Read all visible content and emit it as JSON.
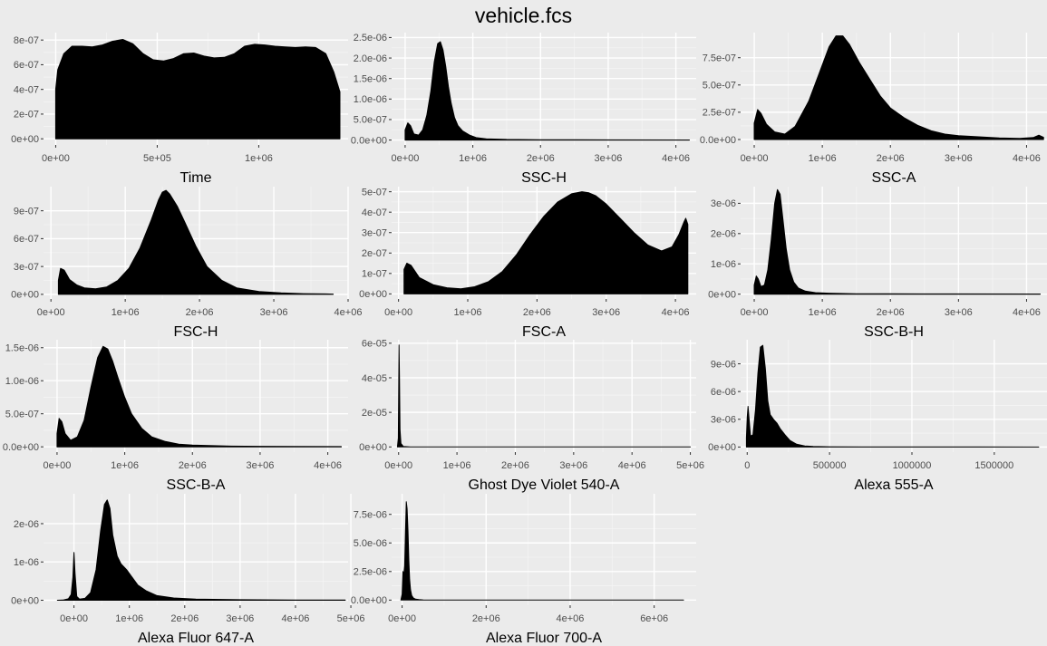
{
  "title": "vehicle.fcs",
  "chart_data": [
    {
      "type": "area",
      "xlabel": "Time",
      "xlim": [
        -60000,
        1440000
      ],
      "ylim": [
        -5e-08,
        8.6e-07
      ],
      "xticks": [
        0,
        500000,
        1000000
      ],
      "xtick_labels": [
        "0e+00",
        "5e+05",
        "1e+06"
      ],
      "yticks": [
        0,
        2e-07,
        4e-07,
        6e-07,
        8e-07
      ],
      "ytick_labels": [
        "0e+00",
        "2e-07",
        "4e-07",
        "6e-07",
        "8e-07"
      ],
      "x": [
        0,
        10000,
        40000,
        80000,
        130000,
        180000,
        230000,
        280000,
        330000,
        380000,
        430000,
        480000,
        530000,
        580000,
        630000,
        680000,
        730000,
        780000,
        830000,
        880000,
        930000,
        980000,
        1030000,
        1080000,
        1130000,
        1180000,
        1230000,
        1280000,
        1330000,
        1370000,
        1400000,
        1400000
      ],
      "y": [
        4e-07,
        5.6e-07,
        6.9e-07,
        7.5e-07,
        7.5e-07,
        7.45e-07,
        7.6e-07,
        7.9e-07,
        8.05e-07,
        7.7e-07,
        6.9e-07,
        6.4e-07,
        6.3e-07,
        6.5e-07,
        6.9e-07,
        6.95e-07,
        6.7e-07,
        6.55e-07,
        6.6e-07,
        6.9e-07,
        7.5e-07,
        7.65e-07,
        7.6e-07,
        7.5e-07,
        7.45e-07,
        7.4e-07,
        7.45e-07,
        7.4e-07,
        6.9e-07,
        5.4e-07,
        3.8e-07,
        0
      ]
    },
    {
      "type": "area",
      "xlabel": "SSC-H",
      "xlim": [
        -200000,
        4300000
      ],
      "ylim": [
        -1.2e-07,
        2.62e-06
      ],
      "xticks": [
        0,
        1000000,
        2000000,
        3000000,
        4000000
      ],
      "xtick_labels": [
        "0e+00",
        "1e+06",
        "2e+06",
        "3e+06",
        "4e+06"
      ],
      "yticks": [
        0,
        5e-07,
        1e-06,
        1.5e-06,
        2e-06,
        2.5e-06
      ],
      "ytick_labels": [
        "0.0e+00",
        "5.0e-07",
        "1.0e-06",
        "1.5e-06",
        "2.0e-06",
        "2.5e-06"
      ],
      "x": [
        0,
        40000,
        80000,
        130000,
        200000,
        260000,
        320000,
        380000,
        430000,
        480000,
        520000,
        560000,
        600000,
        640000,
        680000,
        730000,
        780000,
        850000,
        950000,
        1050000,
        1200000,
        1500000,
        2000000,
        3000000,
        4200000
      ],
      "y": [
        2.5e-07,
        4.2e-07,
        3.5e-07,
        1.5e-07,
        1.2e-07,
        2.5e-07,
        6e-07,
        1.2e-06,
        1.9e-06,
        2.35e-06,
        2.4e-06,
        2.2e-06,
        1.8e-06,
        1.3e-06,
        9e-07,
        5.5e-07,
        3.5e-07,
        2.2e-07,
        1.2e-07,
        6e-08,
        3e-08,
        1.5e-08,
        8e-09,
        4e-09,
        2e-09
      ]
    },
    {
      "type": "area",
      "xlabel": "SSC-A",
      "xlim": [
        -200000,
        4300000
      ],
      "ylim": [
        -5e-08,
        9.8e-07
      ],
      "xticks": [
        0,
        1000000,
        2000000,
        3000000,
        4000000
      ],
      "xtick_labels": [
        "0e+00",
        "1e+06",
        "2e+06",
        "3e+06",
        "4e+06"
      ],
      "yticks": [
        0,
        2.5e-07,
        5e-07,
        7.5e-07
      ],
      "ytick_labels": [
        "0.0e+00",
        "2.5e-07",
        "5.0e-07",
        "7.5e-07"
      ],
      "x": [
        0,
        50000,
        100000,
        180000,
        300000,
        450000,
        600000,
        800000,
        950000,
        1100000,
        1200000,
        1300000,
        1400000,
        1550000,
        1700000,
        1850000,
        2000000,
        2200000,
        2400000,
        2600000,
        2800000,
        3000000,
        3300000,
        3600000,
        3900000,
        4100000,
        4180000,
        4250000
      ],
      "y": [
        1.5e-07,
        2.75e-07,
        2.4e-07,
        1.4e-07,
        7e-08,
        5e-08,
        1.2e-07,
        3.5e-07,
        6e-07,
        8.5e-07,
        9.5e-07,
        9.5e-07,
        8.7e-07,
        7e-07,
        5.5e-07,
        4e-07,
        2.9e-07,
        2e-07,
        1.3e-07,
        8e-08,
        5e-08,
        3.5e-08,
        2.5e-08,
        1.5e-08,
        1e-08,
        1.8e-08,
        4e-08,
        2e-08
      ]
    },
    {
      "type": "area",
      "xlabel": "FSC-H",
      "xlim": [
        -100000,
        4000000
      ],
      "ylim": [
        -5e-08,
        1.16e-06
      ],
      "xticks": [
        0,
        1000000,
        2000000,
        3000000,
        4000000
      ],
      "xtick_labels": [
        "0e+00",
        "1e+06",
        "2e+06",
        "3e+06",
        "4e+06"
      ],
      "yticks": [
        0,
        3e-07,
        6e-07,
        9e-07
      ],
      "ytick_labels": [
        "0e+00",
        "3e-07",
        "6e-07",
        "9e-07"
      ],
      "x": [
        100000,
        130000,
        180000,
        250000,
        350000,
        450000,
        600000,
        750000,
        900000,
        1050000,
        1200000,
        1350000,
        1450000,
        1500000,
        1550000,
        1600000,
        1700000,
        1800000,
        1950000,
        2100000,
        2300000,
        2500000,
        2800000,
        3100000,
        3400000,
        3700000,
        3800000
      ],
      "y": [
        1.5e-07,
        2.8e-07,
        2.6e-07,
        1.6e-07,
        1e-07,
        7e-08,
        6e-08,
        8e-08,
        1.5e-07,
        2.8e-07,
        5e-07,
        8e-07,
        1.02e-06,
        1.1e-06,
        1.12e-06,
        1.08e-06,
        9.5e-07,
        7.8e-07,
        5.2e-07,
        3e-07,
        1.5e-07,
        7e-08,
        3e-08,
        1.5e-08,
        8e-09,
        5e-09,
        3e-09
      ]
    },
    {
      "type": "area",
      "xlabel": "FSC-A",
      "xlim": [
        -100000,
        4300000
      ],
      "ylim": [
        -2.5e-08,
        5.25e-07
      ],
      "xticks": [
        0,
        1000000,
        2000000,
        3000000,
        4000000
      ],
      "xtick_labels": [
        "0e+00",
        "1e+06",
        "2e+06",
        "3e+06",
        "4e+06"
      ],
      "yticks": [
        0,
        1e-07,
        2e-07,
        3e-07,
        4e-07,
        5e-07
      ],
      "ytick_labels": [
        "0e+00",
        "1e-07",
        "2e-07",
        "3e-07",
        "4e-07",
        "5e-07"
      ],
      "x": [
        80000,
        120000,
        180000,
        300000,
        500000,
        700000,
        900000,
        1100000,
        1300000,
        1500000,
        1700000,
        1900000,
        2100000,
        2300000,
        2500000,
        2650000,
        2750000,
        2850000,
        3000000,
        3200000,
        3400000,
        3600000,
        3800000,
        3950000,
        4050000,
        4120000,
        4150000,
        4180000
      ],
      "y": [
        1.2e-07,
        1.5e-07,
        1.4e-07,
        8e-08,
        4.5e-08,
        3e-08,
        2.5e-08,
        3.5e-08,
        6e-08,
        1.1e-07,
        1.9e-07,
        2.9e-07,
        3.8e-07,
        4.5e-07,
        4.9e-07,
        5e-07,
        4.95e-07,
        4.8e-07,
        4.4e-07,
        3.7e-07,
        3e-07,
        2.4e-07,
        2.1e-07,
        2.3e-07,
        2.9e-07,
        3.5e-07,
        3.7e-07,
        3.4e-07
      ]
    },
    {
      "type": "area",
      "xlabel": "SSC-B-H",
      "xlim": [
        -200000,
        4300000
      ],
      "ylim": [
        -1.6e-07,
        3.55e-06
      ],
      "xticks": [
        0,
        1000000,
        2000000,
        3000000,
        4000000
      ],
      "xtick_labels": [
        "0e+00",
        "1e+06",
        "2e+06",
        "3e+06",
        "4e+06"
      ],
      "yticks": [
        0,
        1e-06,
        2e-06,
        3e-06
      ],
      "ytick_labels": [
        "0e+00",
        "1e-06",
        "2e-06",
        "3e-06"
      ],
      "x": [
        0,
        30000,
        60000,
        100000,
        150000,
        200000,
        250000,
        300000,
        340000,
        380000,
        420000,
        470000,
        520000,
        580000,
        650000,
        750000,
        900000,
        1100000,
        1500000,
        2000000,
        3000000,
        4200000
      ],
      "y": [
        3e-07,
        6e-07,
        5e-07,
        2.5e-07,
        3e-07,
        8e-07,
        1.8e-06,
        3e-06,
        3.45e-06,
        3.3e-06,
        2.5e-06,
        1.5e-06,
        8e-07,
        4e-07,
        2e-07,
        1e-07,
        5e-08,
        3e-08,
        1.5e-08,
        1e-08,
        8e-09,
        5e-09
      ]
    },
    {
      "type": "area",
      "xlabel": "SSC-B-A",
      "xlim": [
        -200000,
        4300000
      ],
      "ylim": [
        -8e-08,
        1.62e-06
      ],
      "xticks": [
        0,
        1000000,
        2000000,
        3000000,
        4000000
      ],
      "xtick_labels": [
        "0e+00",
        "1e+06",
        "2e+06",
        "3e+06",
        "4e+06"
      ],
      "yticks": [
        0,
        5e-07,
        1e-06,
        1.5e-06
      ],
      "ytick_labels": [
        "0.0e+00",
        "5.0e-07",
        "1.0e-06",
        "1.5e-06"
      ],
      "x": [
        0,
        30000,
        70000,
        120000,
        200000,
        300000,
        400000,
        500000,
        600000,
        680000,
        750000,
        820000,
        900000,
        1000000,
        1100000,
        1250000,
        1400000,
        1600000,
        1800000,
        2000000,
        2500000,
        3000000,
        3500000,
        4200000
      ],
      "y": [
        2e-07,
        4.3e-07,
        3.8e-07,
        2e-07,
        1e-07,
        1.5e-07,
        4e-07,
        9e-07,
        1.35e-06,
        1.52e-06,
        1.48e-06,
        1.3e-06,
        1.05e-06,
        7.5e-07,
        5e-07,
        2.8e-07,
        1.5e-07,
        8e-08,
        4e-08,
        2.5e-08,
        1.2e-08,
        8e-09,
        5e-09,
        3e-09
      ]
    },
    {
      "type": "area",
      "xlabel": "Ghost Dye Violet 540-A",
      "xlim": [
        -120000,
        5100000
      ],
      "ylim": [
        -3e-06,
        6.2e-05
      ],
      "xticks": [
        0,
        1000000,
        2000000,
        3000000,
        4000000,
        5000000
      ],
      "xtick_labels": [
        "0e+00",
        "1e+06",
        "2e+06",
        "3e+06",
        "4e+06",
        "5e+06"
      ],
      "yticks": [
        0,
        2e-05,
        4e-05,
        6e-05
      ],
      "ytick_labels": [
        "0e+00",
        "2e-05",
        "4e-05",
        "6e-05"
      ],
      "x": [
        -20000,
        -5000,
        2000,
        8000,
        15000,
        25000,
        40000,
        80000,
        200000,
        1000000,
        3000000,
        5000000
      ],
      "y": [
        0,
        5e-06,
        4e-05,
        5.9e-05,
        4e-05,
        1e-05,
        2e-06,
        3e-07,
        5e-08,
        1e-08,
        5e-09,
        2e-09
      ]
    },
    {
      "type": "area",
      "xlabel": "Alexa 555-A",
      "xlim": [
        -40000,
        1820000
      ],
      "ylim": [
        -5.5e-07,
        1.16e-05
      ],
      "xticks": [
        0,
        500000,
        1000000,
        1500000
      ],
      "xtick_labels": [
        "0",
        "500000",
        "1000000",
        "1500000"
      ],
      "yticks": [
        0,
        3e-06,
        6e-06,
        9e-06
      ],
      "ytick_labels": [
        "0e+00",
        "3e-06",
        "6e-06",
        "9e-06"
      ],
      "x": [
        -5000,
        0,
        5000,
        12000,
        20000,
        35000,
        50000,
        65000,
        80000,
        95000,
        110000,
        125000,
        140000,
        160000,
        180000,
        200000,
        230000,
        260000,
        300000,
        350000,
        400000,
        500000,
        700000,
        1000000,
        1400000,
        1770000
      ],
      "y": [
        1e-06,
        3.2e-06,
        4.4e-06,
        3e-06,
        1.2e-06,
        1.3e-06,
        4e-06,
        8e-06,
        1.08e-05,
        1.1e-05,
        8.5e-06,
        5e-06,
        3.5e-06,
        3e-06,
        2.6e-06,
        2e-06,
        1.3e-06,
        7e-07,
        3e-07,
        1.2e-07,
        6e-08,
        3e-08,
        1.5e-08,
        1e-08,
        5e-09,
        3e-09
      ]
    },
    {
      "type": "area",
      "xlabel": "Alexa Fluor 647-A",
      "xlim": [
        -550000,
        4950000
      ],
      "ylim": [
        -1.3e-07,
        2.78e-06
      ],
      "xticks": [
        0,
        1000000,
        2000000,
        3000000,
        4000000,
        5000000
      ],
      "xtick_labels": [
        "0e+00",
        "1e+06",
        "2e+06",
        "3e+06",
        "4e+06",
        "5e+06"
      ],
      "yticks": [
        0,
        1e-06,
        2e-06
      ],
      "ytick_labels": [
        "0e+00",
        "1e-06",
        "2e-06"
      ],
      "x": [
        -300000,
        -200000,
        -100000,
        -50000,
        -20000,
        0,
        20000,
        50000,
        100000,
        200000,
        300000,
        400000,
        480000,
        550000,
        600000,
        650000,
        700000,
        780000,
        850000,
        950000,
        1050000,
        1150000,
        1300000,
        1500000,
        1800000,
        2200000,
        3000000,
        4000000,
        4900000
      ],
      "y": [
        0,
        5e-09,
        4e-08,
        1.5e-07,
        6e-07,
        1.25e-06,
        7e-07,
        1e-07,
        3e-08,
        5e-08,
        2e-07,
        8e-07,
        1.8e-06,
        2.5e-06,
        2.62e-06,
        2.4e-06,
        1.7e-06,
        1.15e-06,
        9.5e-07,
        8e-07,
        6e-07,
        4e-07,
        2.5e-07,
        1.2e-07,
        6e-08,
        3e-08,
        1.5e-08,
        8e-09,
        5e-09
      ]
    },
    {
      "type": "area",
      "xlabel": "Alexa Fluor 700-A",
      "xlim": [
        -250000,
        7000000
      ],
      "ylim": [
        -4.5e-07,
        9.3e-06
      ],
      "xticks": [
        0,
        2000000,
        4000000,
        6000000
      ],
      "xtick_labels": [
        "0e+00",
        "2e+06",
        "4e+06",
        "6e+06"
      ],
      "yticks": [
        0,
        2.5e-06,
        5e-06,
        7.5e-06
      ],
      "ytick_labels": [
        "0.0e+00",
        "2.5e-06",
        "5.0e-06",
        "7.5e-06"
      ],
      "x": [
        -30000,
        0,
        20000,
        40000,
        60000,
        80000,
        100000,
        120000,
        140000,
        160000,
        180000,
        200000,
        230000,
        270000,
        320000,
        400000,
        500000,
        800000,
        1500000,
        3000000,
        5000000,
        6700000
      ],
      "y": [
        0,
        5e-07,
        2.5e-06,
        2.2e-06,
        3e-06,
        6e-06,
        8.6e-06,
        8e-06,
        6e-06,
        3.5e-06,
        1.8e-06,
        9e-07,
        4e-07,
        1.8e-07,
        8e-08,
        4e-08,
        2e-08,
        1e-08,
        5e-09,
        3e-09,
        2e-09,
        1e-09
      ]
    }
  ]
}
